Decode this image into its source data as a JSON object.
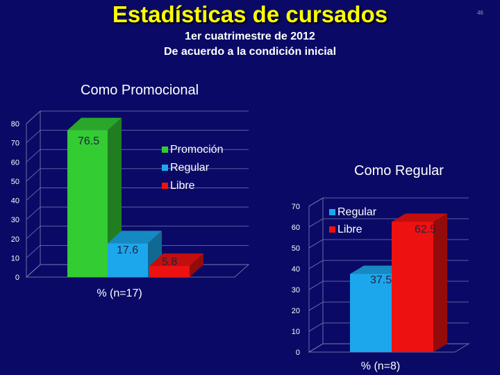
{
  "slide": {
    "title": "Estadísticas de cursados",
    "subtitle_line1": "1er cuatrimestre de 2012",
    "subtitle_line2": "De acuerdo a la condición inicial",
    "slide_number": "46"
  },
  "colors": {
    "background": "#0a0a66",
    "title": "#ffff00",
    "promocion": "#33cc33",
    "regular": "#1ca7ec",
    "libre": "#ee1111"
  },
  "chart_data": [
    {
      "type": "bar",
      "title": "Como Promocional",
      "xlabel": "% (n=17)",
      "categories": [
        "Promoción",
        "Regular",
        "Libre"
      ],
      "values": [
        76.5,
        17.6,
        5.8
      ],
      "value_labels": [
        "76.5",
        "17.6",
        "5.8"
      ],
      "ylim": [
        0,
        80
      ],
      "yticks": [
        0,
        10,
        20,
        30,
        40,
        50,
        60,
        70,
        80
      ],
      "grid": true,
      "three_d": true,
      "legend": [
        "Promoción",
        "Regular",
        "Libre"
      ],
      "legend_position": "right"
    },
    {
      "type": "bar",
      "title": "Como Regular",
      "xlabel": "% (n=8)",
      "categories": [
        "Regular",
        "Libre"
      ],
      "values": [
        37.5,
        62.5
      ],
      "value_labels": [
        "37.5",
        "62.5"
      ],
      "ylim": [
        0,
        70
      ],
      "yticks": [
        0,
        10,
        20,
        30,
        40,
        50,
        60,
        70
      ],
      "grid": true,
      "three_d": true,
      "legend": [
        "Regular",
        "Libre"
      ],
      "legend_position": "top-left"
    }
  ]
}
